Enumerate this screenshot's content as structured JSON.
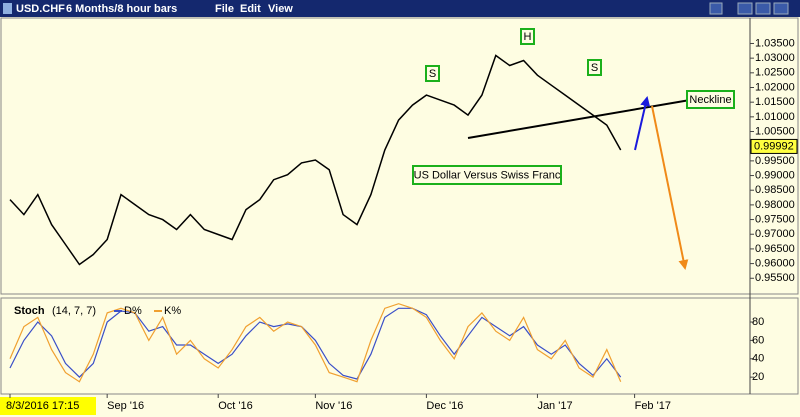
{
  "window": {
    "symbol": "USD.CHF",
    "timeframe": "6 Months/8 hour bars",
    "menu": [
      "File",
      "Edit",
      "View"
    ]
  },
  "chart_data": [
    {
      "type": "line",
      "color": "#000000",
      "annotations": [
        "S",
        "H",
        "S",
        "Neckline",
        "US Dollar Versus Swiss Franc"
      ],
      "series": [
        {
          "color": "#000000",
          "values": [
            0.9818,
            0.9767,
            0.9835,
            0.9733,
            0.9665,
            0.9597,
            0.9631,
            0.9682,
            0.9835,
            0.9801,
            0.9767,
            0.975,
            0.9716,
            0.9767,
            0.9716,
            0.9699,
            0.9682,
            0.9784,
            0.9818,
            0.9886,
            0.9903,
            0.9943,
            0.9953,
            0.992,
            0.9767,
            0.9733,
            0.9835,
            0.9987,
            1.0089,
            1.014,
            1.0174,
            1.0157,
            1.014,
            1.0106,
            1.0174,
            1.0309,
            1.0275,
            1.0292,
            1.0242,
            1.0208,
            1.0174,
            1.014,
            1.0106,
            1.0072,
            0.9987,
            null,
            null,
            null
          ]
        }
      ],
      "last_price": 0.99992,
      "ylim": [
        0.951,
        1.043
      ],
      "yticks": [
        {
          "value": 0.955,
          "label": "0.95500"
        },
        {
          "value": 0.96,
          "label": "0.96000"
        },
        {
          "value": 0.965,
          "label": "0.96500"
        },
        {
          "value": 0.97,
          "label": "0.97000"
        },
        {
          "value": 0.975,
          "label": "0.97500"
        },
        {
          "value": 0.98,
          "label": "0.98000"
        },
        {
          "value": 0.985,
          "label": "0.98500"
        },
        {
          "value": 0.99,
          "label": "0.99000"
        },
        {
          "value": 0.995,
          "label": "0.99500"
        },
        {
          "value": 1.0,
          "label": "1.00000"
        },
        {
          "value": 1.005,
          "label": "1.00500"
        },
        {
          "value": 1.01,
          "label": "1.01000"
        },
        {
          "value": 1.015,
          "label": "1.01500"
        },
        {
          "value": 1.02,
          "label": "1.02000"
        },
        {
          "value": 1.025,
          "label": "1.02500"
        },
        {
          "value": 1.03,
          "label": "1.03000"
        },
        {
          "value": 1.035,
          "label": "1.03500"
        }
      ]
    },
    {
      "type": "line",
      "title": "Stoch",
      "subtitle": "(14, 7, 7)",
      "categories": [
        "8/3/2016 17:15",
        null,
        null,
        null,
        null,
        null,
        null,
        "Sep '16",
        null,
        null,
        null,
        null,
        null,
        null,
        null,
        "Oct '16",
        null,
        null,
        null,
        null,
        null,
        null,
        "Nov '16",
        null,
        null,
        null,
        null,
        null,
        null,
        null,
        "Dec '16",
        null,
        null,
        null,
        null,
        null,
        null,
        null,
        "Jan '17",
        null,
        null,
        null,
        null,
        null,
        null,
        "Feb '17",
        null,
        null
      ],
      "series": [
        {
          "name": "D%",
          "color": "#3a4fc8",
          "values": [
            30,
            60,
            80,
            65,
            35,
            20,
            35,
            80,
            92,
            90,
            70,
            75,
            55,
            55,
            45,
            35,
            45,
            65,
            80,
            75,
            78,
            75,
            60,
            35,
            22,
            18,
            45,
            85,
            95,
            95,
            88,
            65,
            45,
            65,
            85,
            75,
            65,
            75,
            55,
            45,
            55,
            35,
            22,
            40,
            20,
            null,
            null,
            null
          ]
        },
        {
          "name": "K%",
          "color": "#f0a030",
          "values": [
            40,
            75,
            85,
            50,
            25,
            15,
            45,
            90,
            95,
            90,
            60,
            85,
            45,
            60,
            40,
            30,
            50,
            75,
            85,
            70,
            80,
            75,
            55,
            25,
            20,
            15,
            60,
            95,
            100,
            95,
            85,
            60,
            40,
            75,
            90,
            70,
            60,
            85,
            50,
            40,
            60,
            30,
            20,
            50,
            15,
            null,
            null,
            null
          ]
        }
      ],
      "ylim": [
        6,
        104
      ],
      "yticks": [
        20,
        40,
        60,
        80
      ]
    }
  ]
}
